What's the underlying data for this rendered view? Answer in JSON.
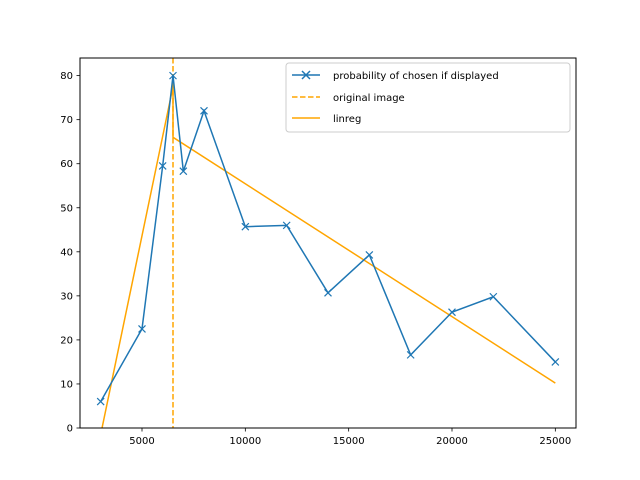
{
  "chart_data": {
    "type": "line",
    "title": "",
    "xlabel": "",
    "ylabel": "",
    "xlim": [
      2000,
      26000
    ],
    "ylim": [
      0,
      84
    ],
    "grid": false,
    "legend_placement": "top-right",
    "x_ticks": [
      5000,
      10000,
      15000,
      20000,
      25000
    ],
    "x_tick_labels": [
      "5000",
      "10000",
      "15000",
      "20000",
      "25000"
    ],
    "y_ticks": [
      0,
      10,
      20,
      30,
      40,
      50,
      60,
      70,
      80
    ],
    "y_tick_labels": [
      "0",
      "10",
      "20",
      "30",
      "40",
      "50",
      "60",
      "70",
      "80"
    ],
    "series": [
      {
        "name": "probability of chosen if displayed",
        "style": "line-with-x-markers",
        "color": "#1f77b4",
        "x": [
          3000,
          5000,
          6000,
          6500,
          7000,
          8000,
          10000,
          12000,
          14000,
          16000,
          18000,
          20000,
          22000,
          25000
        ],
        "y": [
          6,
          22.5,
          59.5,
          80,
          58.3,
          72,
          45.7,
          46,
          30.7,
          39.3,
          16.6,
          26.3,
          29.8,
          15
        ]
      },
      {
        "name": "original image",
        "style": "dashed-vertical",
        "color": "#ffa500",
        "x": 6500
      },
      {
        "name": "linreg",
        "style": "line",
        "color": "#ffa500",
        "x": [
          3000,
          6500,
          6500,
          25000
        ],
        "y": [
          -1.5,
          77.5,
          66,
          10.2
        ]
      }
    ]
  }
}
